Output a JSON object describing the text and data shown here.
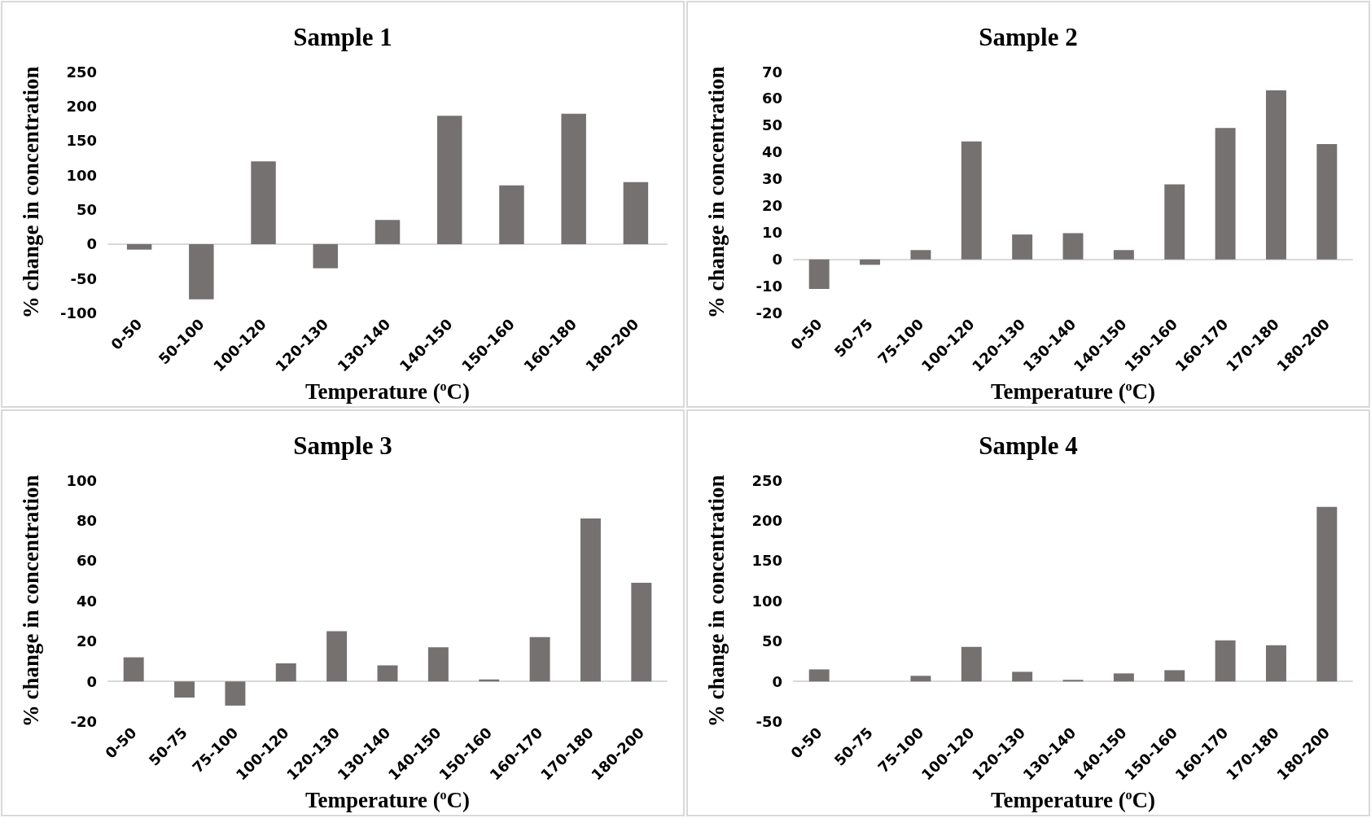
{
  "chart_data": [
    {
      "type": "bar",
      "title": "Sample 1",
      "xlabel": "Temperature ($^{o}$C)",
      "ylabel": "% change in concentration",
      "categories": [
        "0-50",
        "50-100",
        "100-120",
        "120-130",
        "130-140",
        "140-150",
        "150-160",
        "160-180",
        "180-200"
      ],
      "values": [
        -8,
        -80,
        120,
        -35,
        35,
        186,
        85,
        189,
        90
      ],
      "color": "#757171",
      "ylim": [
        -100,
        250
      ],
      "yticks": [
        -100,
        -50,
        0,
        50,
        100,
        150,
        200,
        250
      ]
    },
    {
      "type": "bar",
      "title": "Sample 2",
      "xlabel": "Temperature ($^{o}$C)",
      "ylabel": "% change in concentration",
      "categories": [
        "0-50",
        "50-75",
        "75-100",
        "100-120",
        "120-130",
        "130-140",
        "140-150",
        "150-160",
        "160-170",
        "170-180",
        "180-200"
      ],
      "values": [
        -11,
        -2,
        3.5,
        44,
        9.3,
        9.8,
        3.5,
        28,
        49,
        63,
        43
      ],
      "color": "#757171",
      "ylim": [
        -20,
        70
      ],
      "yticks": [
        -20,
        -10,
        0,
        10,
        20,
        30,
        40,
        50,
        60,
        70
      ]
    },
    {
      "type": "bar",
      "title": "Sample 3",
      "xlabel": "Temperature ($^{o}$C)",
      "ylabel": "% change in concentration",
      "categories": [
        "0-50",
        "50-75",
        "75-100",
        "100-120",
        "120-130",
        "130-140",
        "140-150",
        "150-160",
        "160-170",
        "170-180",
        "180-200"
      ],
      "values": [
        12,
        -8,
        -12,
        9,
        25,
        8,
        17,
        1,
        22,
        81,
        49
      ],
      "color": "#757171",
      "ylim": [
        -20,
        100
      ],
      "yticks": [
        -20,
        0,
        20,
        40,
        60,
        80,
        100
      ]
    },
    {
      "type": "bar",
      "title": "Sample 4",
      "xlabel": "Temperature ($^{o}$C)",
      "ylabel": "% change in concentration",
      "categories": [
        "0-50",
        "50-75",
        "75-100",
        "100-120",
        "120-130",
        "130-140",
        "140-150",
        "150-160",
        "160-170",
        "170-180",
        "180-200"
      ],
      "values": [
        15,
        0,
        7,
        43,
        12,
        2,
        10,
        14,
        51,
        45,
        217
      ],
      "color": "#757171",
      "ylim": [
        -50,
        250
      ],
      "yticks": [
        -50,
        0,
        50,
        100,
        150,
        200,
        250
      ]
    }
  ]
}
